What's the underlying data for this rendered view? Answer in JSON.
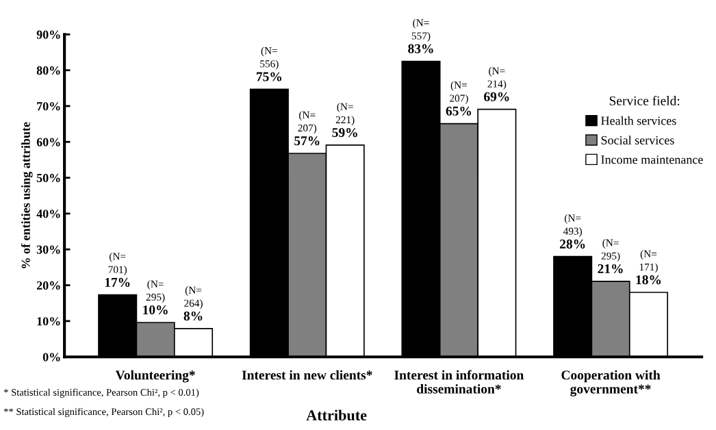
{
  "chart_data": {
    "type": "bar",
    "xlabel": "Attribute",
    "ylabel": "% of entities using attribute",
    "categories": [
      "Volunteering*",
      "Interest in new clients*",
      "Interest in information\ndissemination*",
      "Cooperation with\ngovernment**"
    ],
    "series": [
      {
        "name": "Health services",
        "color": "#000000",
        "values": [
          17.3,
          74.7,
          82.5,
          28.0
        ],
        "value_labels": [
          "17%",
          "75%",
          "83%",
          "28%"
        ]
      },
      {
        "name": "Social services",
        "color": "#808080",
        "values": [
          9.6,
          56.8,
          65.1,
          21.1
        ],
        "value_labels": [
          "10%",
          "57%",
          "65%",
          "21%"
        ]
      },
      {
        "name": "Income maintenance",
        "color": "#ffffff",
        "values": [
          7.9,
          59.1,
          69.1,
          18.0
        ],
        "value_labels": [
          "8%",
          "59%",
          "69%",
          "18%"
        ]
      }
    ],
    "ylim": [
      0,
      90
    ],
    "yticks": [
      {
        "value": 0,
        "label": "0%"
      },
      {
        "value": 10,
        "label": "10%"
      },
      {
        "value": 20,
        "label": "20%"
      },
      {
        "value": 30,
        "label": "30%"
      },
      {
        "value": 40,
        "label": "40%"
      },
      {
        "value": 50,
        "label": "50%"
      },
      {
        "value": 60,
        "label": "60%"
      },
      {
        "value": 70,
        "label": "70%"
      },
      {
        "value": 80,
        "label": "80%"
      },
      {
        "value": 90,
        "label": "90%"
      }
    ],
    "legend": "right",
    "legend_title": "Service field:",
    "grid": false,
    "annotations": [
      "(N=\n701)",
      "(N=\n295)",
      "(N=\n264)",
      "(N=\n556)",
      "(N=\n207)",
      "(N=\n221)",
      "(N=\n557)",
      "(N=\n207)",
      "(N=\n214)",
      "(N=\n493)",
      "(N=\n295)",
      "(N=\n171)",
      "* Statistical significance, Pearson Chi², p < 0.01)",
      "** Statistical significance, Pearson Chi², p < 0.05)"
    ]
  }
}
